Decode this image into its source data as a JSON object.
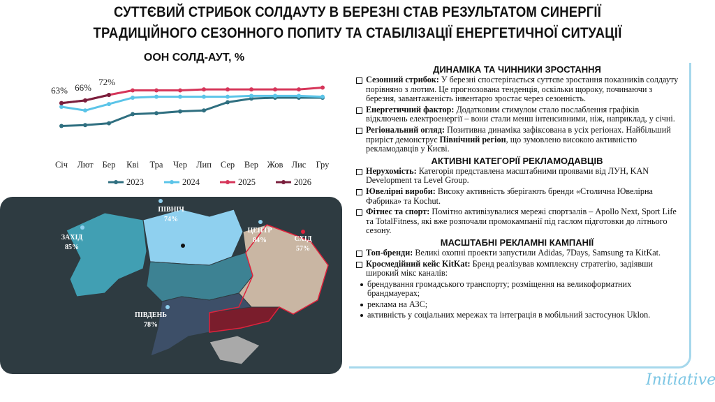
{
  "header": {
    "title": [
      "СУТТЄВИЙ СТРИБОК СОЛДАУТУ В БЕРЕЗНІ СТАВ РЕЗУЛЬТАТОМ СИНЕРГІЇ",
      "ТРАДИЦІЙНОГО СЕЗОННОГО ПОПИТУ ТА СТАБІЛІЗАЦІЇ ЕНЕРГЕТИЧНОЇ СИТУАЦІЇ"
    ]
  },
  "chart_data": {
    "type": "line",
    "title": "ООН СОЛД-АУТ, %",
    "categories": [
      "Січ",
      "Лют",
      "Бер",
      "Кві",
      "Тра",
      "Чер",
      "Лип",
      "Сер",
      "Вер",
      "Жов",
      "Лис",
      "Гру"
    ],
    "ylim": [
      30,
      85
    ],
    "series": [
      {
        "name": "2023",
        "color": "#2f6f80",
        "values": [
          38,
          39,
          41,
          51,
          52,
          54,
          55,
          64,
          68,
          69,
          69,
          69
        ]
      },
      {
        "name": "2024",
        "color": "#5bc4e8",
        "values": [
          59,
          55,
          62,
          69,
          70,
          70,
          70,
          70,
          71,
          71,
          71,
          70
        ]
      },
      {
        "name": "2025",
        "color": "#d6365a",
        "values": [
          63,
          66,
          72,
          77,
          77,
          77,
          78,
          78,
          78,
          78,
          78,
          80
        ]
      },
      {
        "name": "2026",
        "color": "#7a1f3d",
        "values": [
          63,
          66,
          72,
          null,
          null,
          null,
          null,
          null,
          null,
          null,
          null,
          null
        ],
        "value_labels": [
          "63%",
          "66%",
          "72%",
          null,
          null,
          null,
          null,
          null,
          null,
          null,
          null,
          null
        ]
      }
    ]
  },
  "map": {
    "regions": [
      {
        "name": "ЗАХІД",
        "value": "85%"
      },
      {
        "name": "ПІВНІЧ",
        "value": "74%"
      },
      {
        "name": "ЦЕНТР",
        "value": "84%"
      },
      {
        "name": "СХІД",
        "value": "57%"
      },
      {
        "name": "ПІВДЕНЬ",
        "value": "78%"
      }
    ]
  },
  "panel": {
    "sections": [
      {
        "heading": "ДИНАМІКА ТА ЧИННИКИ ЗРОСТАННЯ",
        "items": [
          {
            "parts": [
              "Сезонний стрибок:",
              "У березні спостерігається суттєве зростання показників солдауту порівняно з лютим. Це прогнозована тенденція, оскільки щороку, починаючи з березня, завантаженість інвентарю зростає через сезонність."
            ]
          },
          {
            "parts": [
              "Енергетичний фактор:",
              "Додатковим стимулом стало послаблення графіків відключень електроенергії – вони стали менш інтенсивними, ніж, наприклад, у січні."
            ]
          },
          {
            "parts": [
              "Регіональний огляд:",
              "Позитивна динаміка зафіксована в усіх регіонах. Найбільший приріст демонструє",
              "Північний регіон",
              ", що зумовлено високою активністю рекламодавців у Києві."
            ]
          }
        ]
      },
      {
        "heading": "АКТИВНІ КАТЕГОРІЇ РЕКЛАМОДАВЦІВ",
        "items": [
          {
            "parts": [
              "Нерухомість:",
              "Категорія представлена масштабними проявами від ЛУН, KAN Development та Level Group."
            ]
          },
          {
            "parts": [
              "Ювелірні вироби:",
              "Високу активність зберігають бренди «Столична Ювелірна Фабрика» та Kochut."
            ]
          },
          {
            "parts": [
              "Фітнес та спорт:",
              "Помітно активізувалися мережі спортзалів – Apollo Next, Sport Life та TotalFitness, які вже розпочали промокампанії під гаслом підготовки до літнього сезону."
            ]
          }
        ]
      },
      {
        "heading": "МАСШТАБНІ РЕКЛАМНІ КАМПАНІЇ",
        "items": [
          {
            "parts": [
              "Топ-бренди:",
              "Великі охопні проекти запустили Adidas, 7Days, Samsung та KitKat."
            ]
          },
          {
            "parts": [
              "Кросмедійний кейс KitKat:",
              "Бренд реалізував комплексну стратегію, задіявши широкий мікс каналів:"
            ],
            "sub": [
              "брендування громадського транспорту; розміщення на великоформатних брандмауерах;",
              "реклама на АЗС;",
              "активність у соціальних мережах та інтеграція в мобільний застосунок Uklon."
            ]
          }
        ]
      }
    ]
  },
  "logo": "Initiative"
}
